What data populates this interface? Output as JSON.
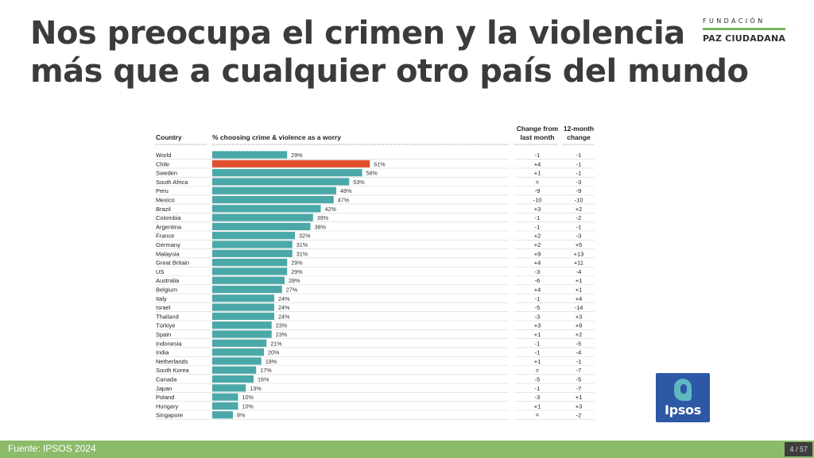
{
  "title": {
    "line1": "Nos preocupa el crimen y la violencia",
    "line2": "más que a cualquier otro país del mundo"
  },
  "logo": {
    "top": "FUNDACIÓN",
    "bottom": "PAZ CIUDADANA"
  },
  "ipsos_logo": {
    "text": "Ipsos"
  },
  "footer": {
    "source": "Fuente: IPSOS 2024",
    "page": "4 / 57"
  },
  "colors": {
    "bar": "#4ba8a8",
    "highlight": "#e04e2e",
    "footer": "#8cbb6a",
    "title": "#3b3b3b"
  },
  "chart_data": {
    "type": "table",
    "headers": {
      "country": "Country",
      "metric": "% choosing crime & violence as a worry",
      "change1": [
        "Change from",
        "last month"
      ],
      "change2": [
        "12-month",
        "change"
      ]
    },
    "highlight": "Chile",
    "rows": [
      {
        "country": "World",
        "value": 29,
        "label": "29%",
        "change_month": "-1",
        "change_12m": "-1"
      },
      {
        "country": "Chile",
        "value": 61,
        "label": "61%",
        "change_month": "+4",
        "change_12m": "-1"
      },
      {
        "country": "Sweden",
        "value": 58,
        "label": "58%",
        "change_month": "+1",
        "change_12m": "-1"
      },
      {
        "country": "South Africa",
        "value": 53,
        "label": "53%",
        "change_month": "=",
        "change_12m": "-3"
      },
      {
        "country": "Peru",
        "value": 48,
        "label": "48%",
        "change_month": "-9",
        "change_12m": "-9"
      },
      {
        "country": "Mexico",
        "value": 47,
        "label": "47%",
        "change_month": "-10",
        "change_12m": "-10"
      },
      {
        "country": "Brazil",
        "value": 42,
        "label": "42%",
        "change_month": "+3",
        "change_12m": "+2"
      },
      {
        "country": "Colombia",
        "value": 39,
        "label": "39%",
        "change_month": "-1",
        "change_12m": "-2"
      },
      {
        "country": "Argentina",
        "value": 38,
        "label": "38%",
        "change_month": "-1",
        "change_12m": "-1"
      },
      {
        "country": "France",
        "value": 32,
        "label": "32%",
        "change_month": "+2",
        "change_12m": "-3"
      },
      {
        "country": "Germany",
        "value": 31,
        "label": "31%",
        "change_month": "+2",
        "change_12m": "+5"
      },
      {
        "country": "Malaysia",
        "value": 31,
        "label": "31%",
        "change_month": "+9",
        "change_12m": "+13"
      },
      {
        "country": "Great Britain",
        "value": 29,
        "label": "29%",
        "change_month": "+4",
        "change_12m": "+11"
      },
      {
        "country": "US",
        "value": 29,
        "label": "29%",
        "change_month": "-3",
        "change_12m": "-4"
      },
      {
        "country": "Australia",
        "value": 28,
        "label": "28%",
        "change_month": "-6",
        "change_12m": "+1"
      },
      {
        "country": "Belgium",
        "value": 27,
        "label": "27%",
        "change_month": "+4",
        "change_12m": "+1"
      },
      {
        "country": "Italy",
        "value": 24,
        "label": "24%",
        "change_month": "-1",
        "change_12m": "+4"
      },
      {
        "country": "Israel",
        "value": 24,
        "label": "24%",
        "change_month": "-5",
        "change_12m": "-14"
      },
      {
        "country": "Thailand",
        "value": 24,
        "label": "24%",
        "change_month": "-3",
        "change_12m": "+3"
      },
      {
        "country": "Türkiye",
        "value": 23,
        "label": "23%",
        "change_month": "+3",
        "change_12m": "+9"
      },
      {
        "country": "Spain",
        "value": 23,
        "label": "23%",
        "change_month": "+1",
        "change_12m": "+2"
      },
      {
        "country": "Indonesia",
        "value": 21,
        "label": "21%",
        "change_month": "-1",
        "change_12m": "-5"
      },
      {
        "country": "India",
        "value": 20,
        "label": "20%",
        "change_month": "-1",
        "change_12m": "-4"
      },
      {
        "country": "Netherlands",
        "value": 19,
        "label": "19%",
        "change_month": "+1",
        "change_12m": "-1"
      },
      {
        "country": "South Korea",
        "value": 17,
        "label": "17%",
        "change_month": "=",
        "change_12m": "-7"
      },
      {
        "country": "Canada",
        "value": 16,
        "label": "16%",
        "change_month": "-5",
        "change_12m": "-5"
      },
      {
        "country": "Japan",
        "value": 13,
        "label": "13%",
        "change_month": "-1",
        "change_12m": "-7"
      },
      {
        "country": "Poland",
        "value": 10,
        "label": "10%",
        "change_month": "-3",
        "change_12m": "+1"
      },
      {
        "country": "Hungary",
        "value": 10,
        "label": "10%",
        "change_month": "+1",
        "change_12m": "+3"
      },
      {
        "country": "Singapore",
        "value": 8,
        "label": "8%",
        "change_month": "=",
        "change_12m": "-2"
      }
    ]
  }
}
